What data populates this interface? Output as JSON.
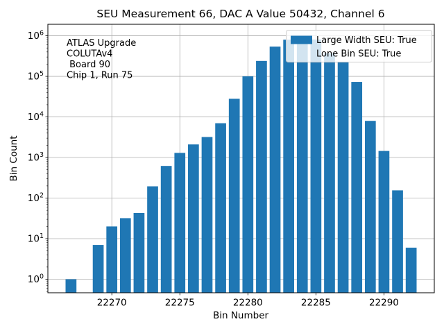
{
  "title": "SEU Measurement 66, DAC A Value 50432, Channel 6",
  "annotation": {
    "lines": [
      "ATLAS Upgrade",
      "COLUTAv4",
      " Board 90",
      "Chip 1, Run 75"
    ]
  },
  "legend": {
    "entries": [
      {
        "label": "Large Width SEU: True",
        "has_swatch": true
      },
      {
        "label": "Lone Bin SEU: True",
        "has_swatch": false
      }
    ]
  },
  "colors": {
    "bar": "#1f77b4",
    "grid": "#b0b0b0",
    "spine": "#000000",
    "legend_border": "#cccccc",
    "legend_bg": "#ffffff"
  },
  "chart_data": {
    "type": "bar",
    "title": "SEU Measurement 66, DAC A Value 50432, Channel 6",
    "xlabel": "Bin Number",
    "ylabel": "Bin Count",
    "yscale": "log",
    "grid": true,
    "legend_loc": "upper right",
    "bar_width": 0.8,
    "x": [
      22267,
      22269,
      22270,
      22271,
      22272,
      22273,
      22274,
      22275,
      22276,
      22277,
      22278,
      22279,
      22280,
      22281,
      22282,
      22283,
      22284,
      22285,
      22286,
      22287,
      22288,
      22289,
      22290,
      22291,
      22292
    ],
    "values": [
      1,
      7,
      20,
      32,
      43,
      195,
      620,
      1300,
      2100,
      3200,
      7000,
      28000,
      100000,
      240000,
      540000,
      800000,
      920000,
      810000,
      370000,
      230000,
      73000,
      8000,
      1450,
      155,
      6
    ],
    "xticks": [
      22270,
      22275,
      22280,
      22285,
      22290
    ],
    "xtick_labels": [
      "22270",
      "22275",
      "22280",
      "22285",
      "22290"
    ],
    "yticks": [
      {
        "value": 1,
        "label": "10⁰",
        "exp": "0"
      },
      {
        "value": 10,
        "label": "10¹",
        "exp": "1"
      },
      {
        "value": 100,
        "label": "10²",
        "exp": "2"
      },
      {
        "value": 1000,
        "label": "10³",
        "exp": "3"
      },
      {
        "value": 10000,
        "label": "10⁴",
        "exp": "4"
      },
      {
        "value": 100000,
        "label": "10⁵",
        "exp": "5"
      },
      {
        "value": 1000000,
        "label": "10⁶",
        "exp": "6"
      }
    ],
    "xlim": [
      22265.3,
      22293.7
    ],
    "ylim": [
      0.464,
      1920000
    ]
  }
}
